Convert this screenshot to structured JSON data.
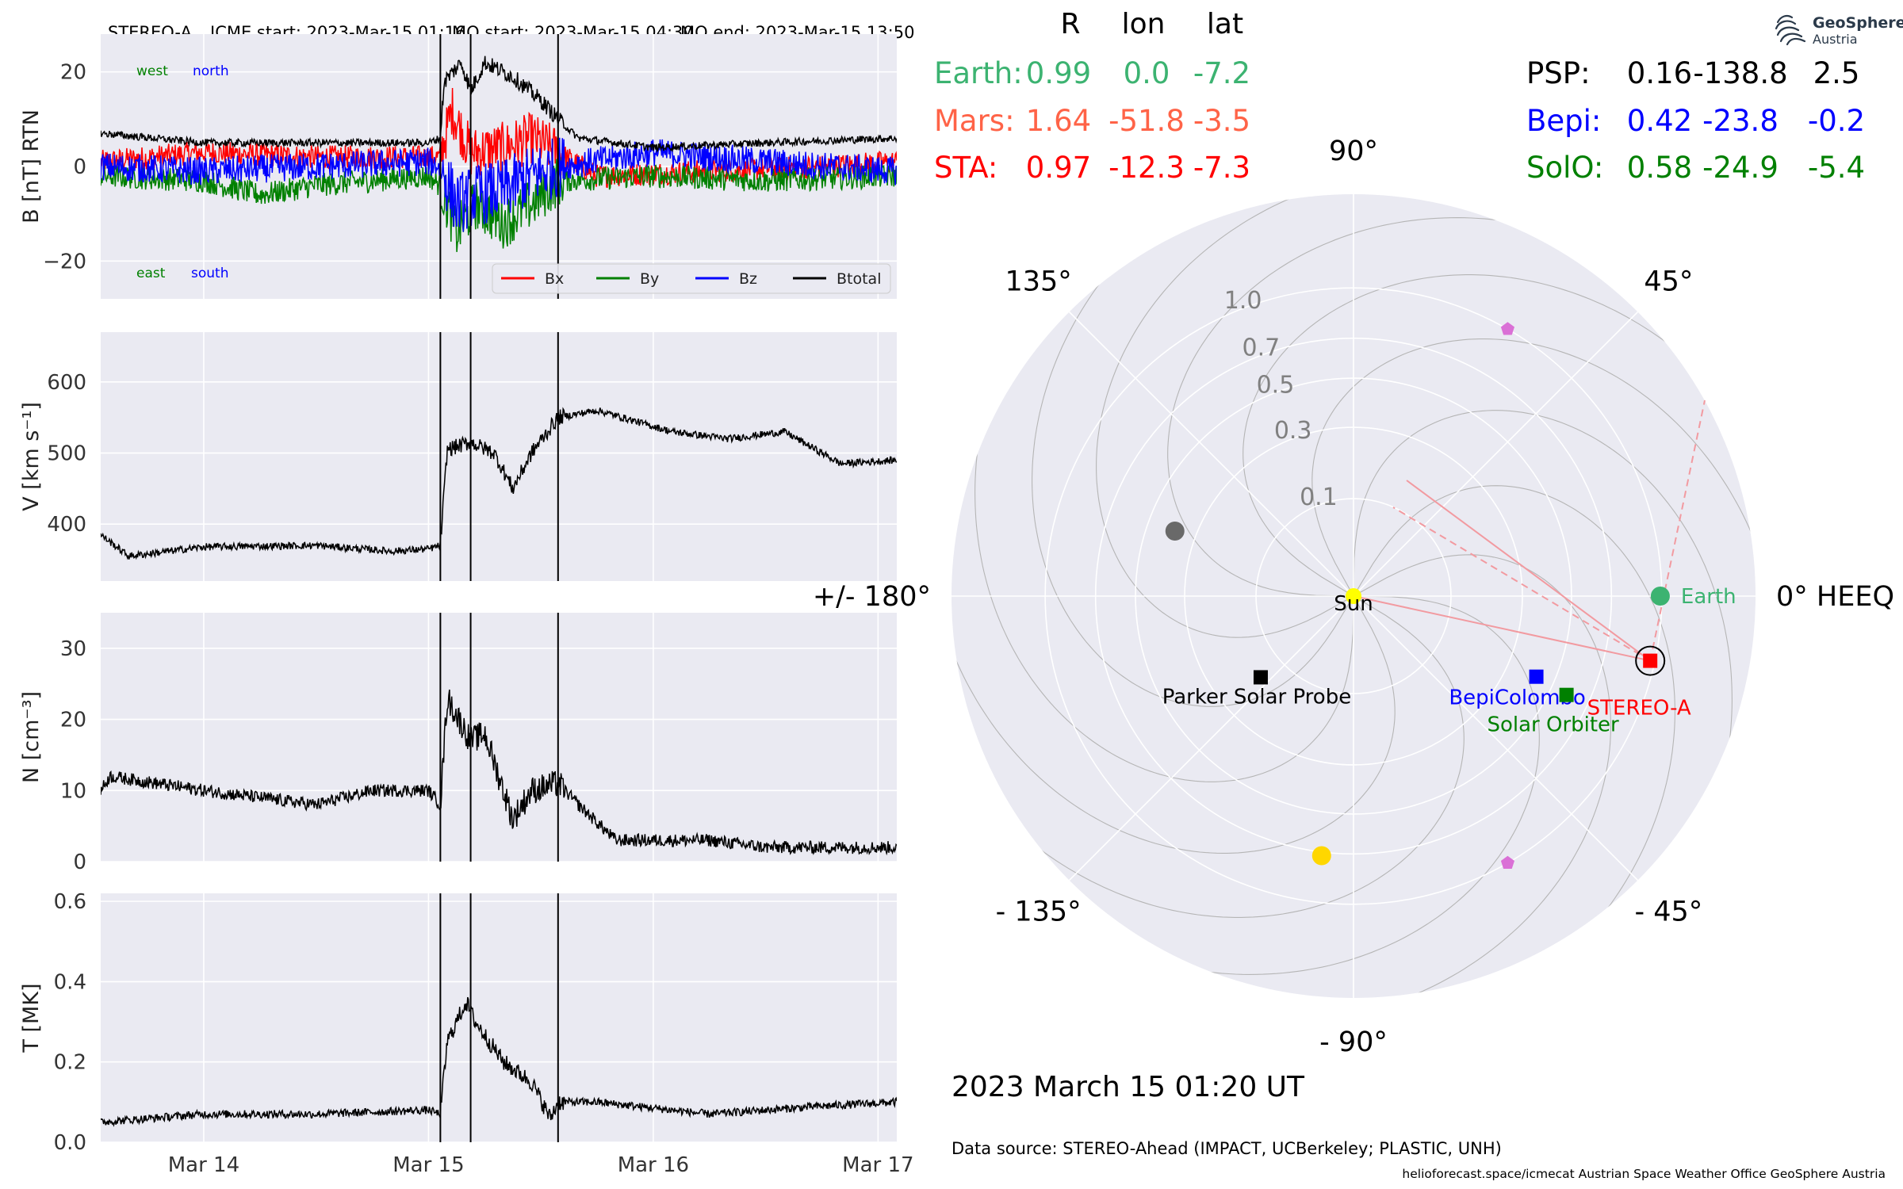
{
  "title": {
    "spacecraft": "STEREO-A",
    "icme_start": "ICME start: 2023-Mar-15 01:16",
    "mo_start": "MO start: 2023-Mar-15 04:30",
    "mo_end": "MO end: 2023-Mar-15 13:50"
  },
  "timestamp": "2023 March 15  01:20 UT",
  "data_source": "Data source: STEREO-Ahead (IMPACT, UCBerkeley; PLASTIC, UNH)",
  "credits": "helioforecast.space/icmecat   Austrian Space Weather Office   GeoSphere Austria",
  "logo": {
    "word1": "GeoSphere",
    "word2": "Austria"
  },
  "colors": {
    "bx": "#ff0000",
    "by": "#008000",
    "bz": "#0000ff",
    "btotal": "#000000",
    "earth": "#3cb371",
    "mars": "#ff6347",
    "sta": "#ff0000",
    "psp": "#000000",
    "bepi": "#0000ff",
    "solo": "#008000",
    "panel_bg": "#eaeaf2"
  },
  "positions": {
    "header": [
      "R",
      "lon",
      "lat"
    ],
    "rows_left": [
      {
        "name": "Earth:",
        "r": "0.99",
        "lon": "0.0",
        "lat": "-7.2",
        "color": "#3cb371"
      },
      {
        "name": "Mars:",
        "r": "1.64",
        "lon": "-51.8",
        "lat": "-3.5",
        "color": "#ff6347"
      },
      {
        "name": "STA:",
        "r": "0.97",
        "lon": "-12.3",
        "lat": "-7.3",
        "color": "#ff0000"
      }
    ],
    "rows_right": [
      {
        "name": "PSP:",
        "r": "0.16",
        "lon": "-138.8",
        "lat": "2.5",
        "color": "#000000"
      },
      {
        "name": "Bepi:",
        "r": "0.42",
        "lon": "-23.8",
        "lat": "-0.2",
        "color": "#0000ff"
      },
      {
        "name": "SolO:",
        "r": "0.58",
        "lon": "-24.9",
        "lat": "-5.4",
        "color": "#008000"
      }
    ]
  },
  "chart_data": [
    {
      "type": "line",
      "panel": "B",
      "ylabel": "B [nT] RTN",
      "ylim": [
        -28,
        28
      ],
      "yticks": [
        -20,
        0,
        20
      ],
      "ytick_labels": [
        "−20",
        "0",
        "20"
      ],
      "xlim": [
        "2023-03-13T13:00",
        "2023-03-17T02:00"
      ],
      "xticks": [
        "2023-03-14",
        "2023-03-15",
        "2023-03-16",
        "2023-03-17"
      ],
      "xtick_labels": [
        "Mar 14",
        "Mar 15",
        "Mar 16",
        "Mar 17"
      ],
      "show_xtick_labels": false,
      "vlines": [
        "2023-03-15T01:16",
        "2023-03-15T04:30",
        "2023-03-15T13:50"
      ],
      "corner_labels": [
        {
          "text": "west",
          "color": "#008000",
          "corner": "top-left"
        },
        {
          "text": "north",
          "color": "#0000ff",
          "corner": "top-left"
        },
        {
          "text": "east",
          "color": "#008000",
          "corner": "bottom-left"
        },
        {
          "text": "south",
          "color": "#0000ff",
          "corner": "bottom-left"
        }
      ],
      "legend": {
        "placement": "lower-right",
        "entries": [
          "Bx",
          "By",
          "Bz",
          "Btotal"
        ]
      },
      "series": [
        {
          "name": "Bx",
          "color": "#ff0000",
          "noise": 2.5,
          "x": [
            "2023-03-13T13:00",
            "2023-03-14T00:00",
            "2023-03-14T12:00",
            "2023-03-15T00:00",
            "2023-03-15T01:16",
            "2023-03-15T02:30",
            "2023-03-15T04:30",
            "2023-03-15T08:00",
            "2023-03-15T11:00",
            "2023-03-15T13:50",
            "2023-03-15T18:00",
            "2023-03-16T06:00",
            "2023-03-16T18:00",
            "2023-03-17T02:00"
          ],
          "y": [
            1,
            3,
            2,
            2,
            2,
            12,
            3,
            4,
            6,
            3,
            -2,
            -1,
            0,
            1
          ]
        },
        {
          "name": "By",
          "color": "#008000",
          "noise": 2.5,
          "x": [
            "2023-03-13T13:00",
            "2023-03-14T00:00",
            "2023-03-14T06:00",
            "2023-03-14T12:00",
            "2023-03-15T00:00",
            "2023-03-15T01:16",
            "2023-03-15T03:00",
            "2023-03-15T05:00",
            "2023-03-15T08:00",
            "2023-03-15T11:00",
            "2023-03-15T13:50",
            "2023-03-16T00:00",
            "2023-03-16T12:00",
            "2023-03-17T02:00"
          ],
          "y": [
            -2,
            -3,
            -6,
            -4,
            -2,
            -4,
            -14,
            -8,
            -12,
            -8,
            -3,
            -2,
            -3,
            -2
          ]
        },
        {
          "name": "Bz",
          "color": "#0000ff",
          "noise": 3,
          "x": [
            "2023-03-13T13:00",
            "2023-03-14T00:00",
            "2023-03-14T12:00",
            "2023-03-15T00:00",
            "2023-03-15T01:16",
            "2023-03-15T03:00",
            "2023-03-15T05:00",
            "2023-03-15T08:00",
            "2023-03-15T11:00",
            "2023-03-15T13:50",
            "2023-03-16T00:00",
            "2023-03-16T12:00",
            "2023-03-17T02:00"
          ],
          "y": [
            0,
            -1,
            0,
            1,
            0,
            -8,
            -6,
            -5,
            -2,
            0,
            3,
            1,
            -1
          ]
        },
        {
          "name": "Btotal",
          "color": "#000000",
          "noise": 0.8,
          "x": [
            "2023-03-13T13:00",
            "2023-03-14T00:00",
            "2023-03-14T12:00",
            "2023-03-15T00:00",
            "2023-03-15T01:16",
            "2023-03-15T01:40",
            "2023-03-15T03:30",
            "2023-03-15T04:30",
            "2023-03-15T06:00",
            "2023-03-15T09:00",
            "2023-03-15T12:00",
            "2023-03-15T13:50",
            "2023-03-15T16:00",
            "2023-03-16T00:00",
            "2023-03-16T12:00",
            "2023-03-17T02:00"
          ],
          "y": [
            7,
            5,
            5,
            5,
            6,
            18,
            22,
            16,
            22,
            19,
            14,
            10,
            6,
            4,
            5,
            6
          ]
        }
      ]
    },
    {
      "type": "line",
      "panel": "V",
      "ylabel": "V [km s⁻¹]",
      "ylim": [
        320,
        670
      ],
      "yticks": [
        400,
        500,
        600
      ],
      "ytick_labels": [
        "400",
        "500",
        "600"
      ],
      "xlim": [
        "2023-03-13T13:00",
        "2023-03-17T02:00"
      ],
      "xticks": [
        "2023-03-14",
        "2023-03-15",
        "2023-03-16",
        "2023-03-17"
      ],
      "xtick_labels": [
        "Mar 14",
        "Mar 15",
        "Mar 16",
        "Mar 17"
      ],
      "show_xtick_labels": false,
      "vlines": [
        "2023-03-15T01:16",
        "2023-03-15T04:30",
        "2023-03-15T13:50"
      ],
      "series": [
        {
          "name": "V",
          "color": "#000000",
          "noise": 5,
          "x": [
            "2023-03-13T13:00",
            "2023-03-13T14:00",
            "2023-03-13T16:00",
            "2023-03-14T00:00",
            "2023-03-14T12:00",
            "2023-03-14T20:00",
            "2023-03-15T00:00",
            "2023-03-15T01:16",
            "2023-03-15T02:00",
            "2023-03-15T04:30",
            "2023-03-15T07:00",
            "2023-03-15T09:00",
            "2023-03-15T11:00",
            "2023-03-15T13:50",
            "2023-03-15T18:00",
            "2023-03-16T02:00",
            "2023-03-16T08:00",
            "2023-03-16T14:00",
            "2023-03-16T20:00",
            "2023-03-17T02:00"
          ],
          "y": [
            385,
            375,
            355,
            368,
            370,
            362,
            365,
            370,
            505,
            515,
            500,
            450,
            500,
            550,
            560,
            530,
            520,
            530,
            485,
            490
          ]
        }
      ]
    },
    {
      "type": "line",
      "panel": "N",
      "ylabel": "N [cm⁻³]",
      "ylim": [
        0,
        35
      ],
      "yticks": [
        0,
        10,
        20,
        30
      ],
      "ytick_labels": [
        "0",
        "10",
        "20",
        "30"
      ],
      "xlim": [
        "2023-03-13T13:00",
        "2023-03-17T02:00"
      ],
      "xticks": [
        "2023-03-14",
        "2023-03-15",
        "2023-03-16",
        "2023-03-17"
      ],
      "xtick_labels": [
        "Mar 14",
        "Mar 15",
        "Mar 16",
        "Mar 17"
      ],
      "show_xtick_labels": false,
      "vlines": [
        "2023-03-15T01:16",
        "2023-03-15T04:30",
        "2023-03-15T13:50"
      ],
      "series": [
        {
          "name": "N",
          "color": "#000000",
          "noise": 0.9,
          "x": [
            "2023-03-13T13:00",
            "2023-03-13T14:00",
            "2023-03-14T00:00",
            "2023-03-14T12:00",
            "2023-03-14T18:00",
            "2023-03-15T00:00",
            "2023-03-15T01:16",
            "2023-03-15T02:00",
            "2023-03-15T04:30",
            "2023-03-15T06:00",
            "2023-03-15T09:00",
            "2023-03-15T11:00",
            "2023-03-15T13:50",
            "2023-03-15T16:00",
            "2023-03-15T20:00",
            "2023-03-16T06:00",
            "2023-03-16T12:00",
            "2023-03-17T02:00"
          ],
          "y": [
            10,
            12,
            10,
            8,
            10,
            10,
            8,
            23,
            17,
            18,
            6,
            10,
            11,
            8,
            3,
            3,
            2,
            2
          ]
        }
      ]
    },
    {
      "type": "line",
      "panel": "T",
      "ylabel": "T [MK]",
      "ylim": [
        0,
        0.62
      ],
      "yticks": [
        0,
        0.2,
        0.4,
        0.6
      ],
      "ytick_labels": [
        "0.0",
        "0.2",
        "0.4",
        "0.6"
      ],
      "xlim": [
        "2023-03-13T13:00",
        "2023-03-17T02:00"
      ],
      "xticks": [
        "2023-03-14",
        "2023-03-15",
        "2023-03-16",
        "2023-03-17"
      ],
      "xtick_labels": [
        "Mar 14",
        "Mar 15",
        "Mar 16",
        "Mar 17"
      ],
      "show_xtick_labels": true,
      "vlines": [
        "2023-03-15T01:16",
        "2023-03-15T04:30",
        "2023-03-15T13:50"
      ],
      "series": [
        {
          "name": "T",
          "color": "#000000",
          "noise": 0.01,
          "x": [
            "2023-03-13T13:00",
            "2023-03-14T00:00",
            "2023-03-14T12:00",
            "2023-03-15T00:00",
            "2023-03-15T01:16",
            "2023-03-15T02:00",
            "2023-03-15T04:00",
            "2023-03-15T05:00",
            "2023-03-15T08:00",
            "2023-03-15T11:00",
            "2023-03-15T13:00",
            "2023-03-15T13:50",
            "2023-03-15T18:00",
            "2023-03-16T06:00",
            "2023-03-16T18:00",
            "2023-03-17T02:00"
          ],
          "y": [
            0.05,
            0.07,
            0.07,
            0.08,
            0.07,
            0.25,
            0.35,
            0.3,
            0.2,
            0.15,
            0.06,
            0.1,
            0.1,
            0.07,
            0.09,
            0.1
          ]
        }
      ]
    },
    {
      "type": "scatter",
      "panel": "polar",
      "coords": "HEEQ",
      "rmax": 1.7,
      "radial_ticks": [
        0.1,
        0.3,
        0.5,
        0.7,
        1.0
      ],
      "radial_tick_labels": [
        "0.1",
        "0.3",
        "0.5",
        "0.7",
        "1.0"
      ],
      "angle_labels": [
        {
          "deg": 0,
          "text": "0° HEEQ"
        },
        {
          "deg": 45,
          "text": "45°"
        },
        {
          "deg": 90,
          "text": "90°"
        },
        {
          "deg": 135,
          "text": "135°"
        },
        {
          "deg": 180,
          "text": "+/- 180°"
        },
        {
          "deg": -135,
          "text": "- 135°"
        },
        {
          "deg": -90,
          "text": "- 90°"
        },
        {
          "deg": -45,
          "text": "- 45°"
        }
      ],
      "bodies": [
        {
          "name": "Sun",
          "label": "Sun",
          "r": 0.0,
          "lon": 0,
          "marker": "circle",
          "color": "#ffff00",
          "label_color": "#000000"
        },
        {
          "name": "Earth",
          "label": "Earth",
          "r": 0.99,
          "lon": 0.0,
          "marker": "circle",
          "color": "#3cb371",
          "label_color": "#3cb371"
        },
        {
          "name": "STEREO-A",
          "label": "STEREO-A",
          "r": 0.97,
          "lon": -12.3,
          "marker": "square",
          "color": "#ff0000",
          "label_color": "#ff0000"
        },
        {
          "name": "Parker Solar Probe",
          "label": "Parker Solar Probe",
          "r": 0.16,
          "lon": -138.8,
          "marker": "square",
          "color": "#000000",
          "label_color": "#000000"
        },
        {
          "name": "BepiColombo",
          "label": "BepiColombo",
          "r": 0.42,
          "lon": -23.8,
          "marker": "square",
          "color": "#0000ff",
          "label_color": "#0000ff"
        },
        {
          "name": "Solar Orbiter",
          "label": "Solar Orbiter",
          "r": 0.58,
          "lon": -24.9,
          "marker": "square",
          "color": "#008000",
          "label_color": "#008000"
        },
        {
          "name": "Mercury",
          "label": "",
          "r": 0.38,
          "lon": 160,
          "marker": "circle",
          "color": "#696969"
        },
        {
          "name": "Venus",
          "label": "",
          "r": 0.72,
          "lon": -97,
          "marker": "circle",
          "color": "#ffd700"
        },
        {
          "name": "L4",
          "label": "",
          "r": 1.0,
          "lon": 60,
          "marker": "pentagon",
          "color": "#da70d6"
        },
        {
          "name": "L5",
          "label": "",
          "r": 1.0,
          "lon": -60,
          "marker": "pentagon",
          "color": "#da70d6"
        }
      ]
    }
  ]
}
